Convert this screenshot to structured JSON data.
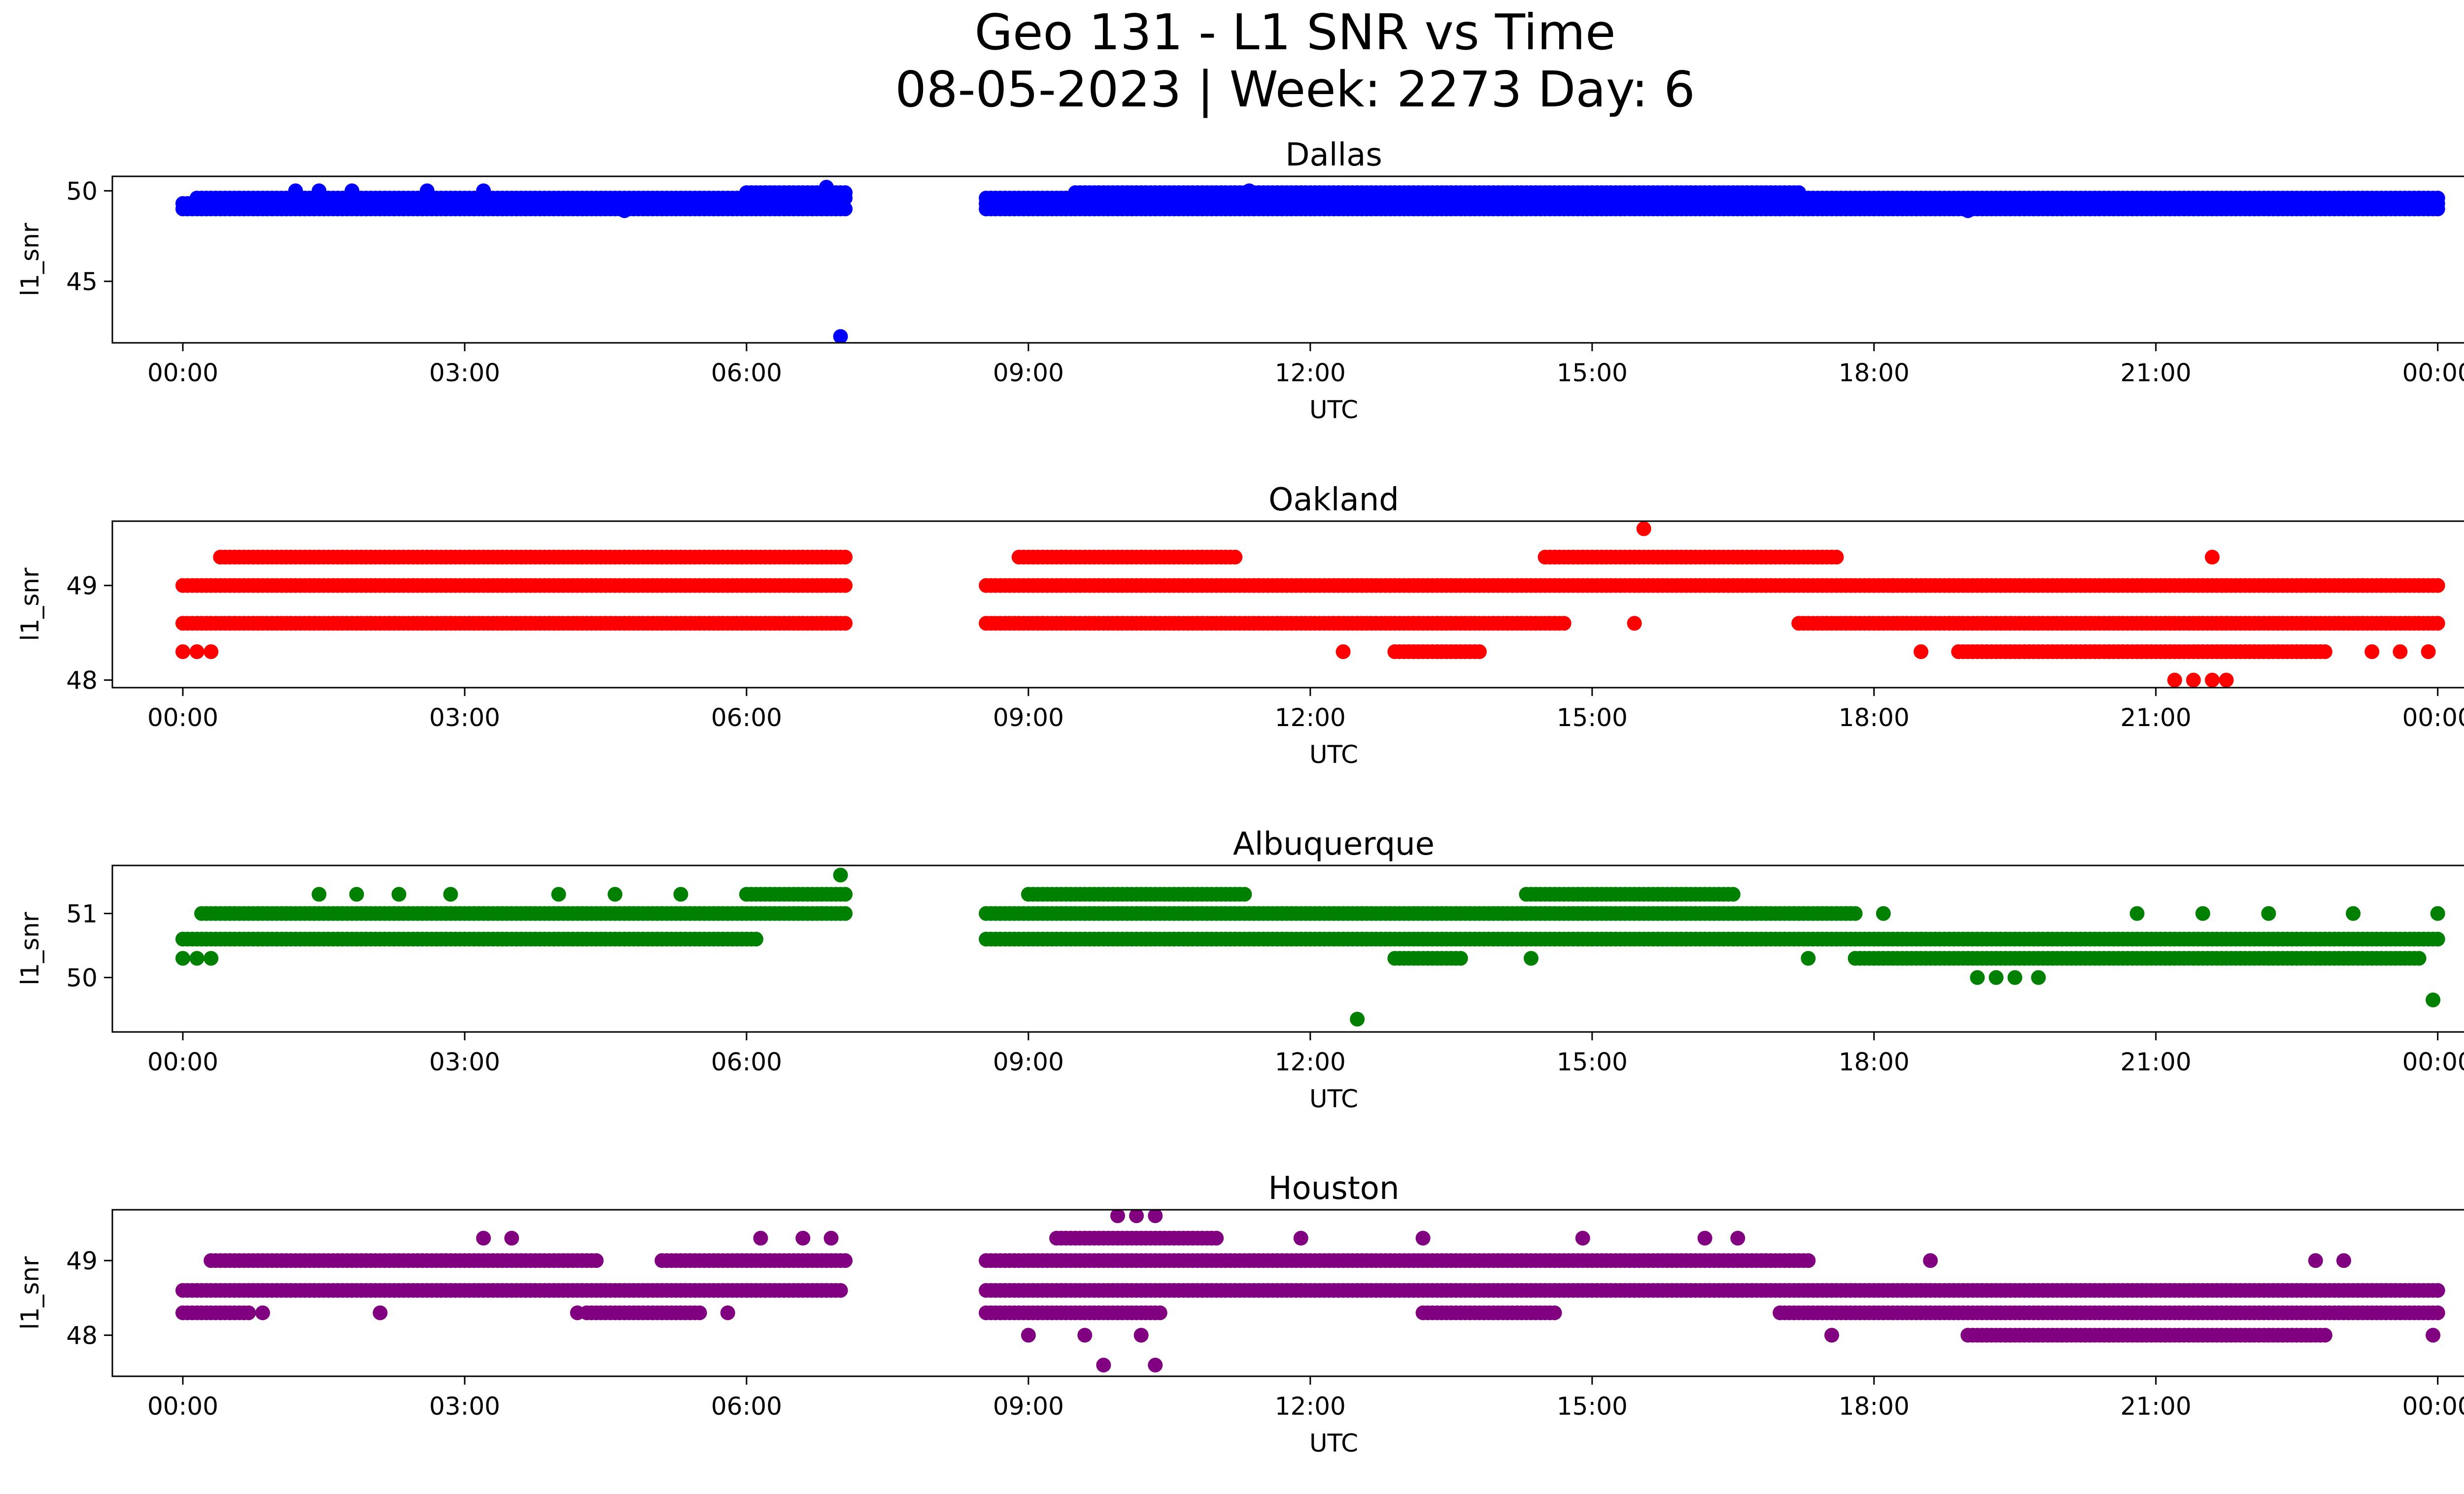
{
  "figure": {
    "title_line1": "Geo 131 - L1 SNR vs Time",
    "title_line2": "08-05-2023 | Week: 2273 Day: 6"
  },
  "chart_data": [
    {
      "type": "scatter",
      "title": "Dallas",
      "xlabel": "UTC",
      "ylabel": "l1_snr",
      "color": "#0000ff",
      "xlim_hours": [
        -0.75,
        25.25
      ],
      "ylim": [
        41.6,
        50.8
      ],
      "x_tick_labels": [
        "00:00",
        "03:00",
        "06:00",
        "09:00",
        "12:00",
        "15:00",
        "18:00",
        "21:00",
        "00:00"
      ],
      "y_ticks": [
        45,
        50
      ],
      "y_tick_labels": [
        "45",
        "50"
      ],
      "grid": false,
      "bands": [
        {
          "y": 49.0,
          "segments": [
            [
              0.0,
              7.05
            ],
            [
              8.55,
              17.0
            ],
            [
              17.0,
              24.0
            ]
          ]
        },
        {
          "y": 49.3,
          "segments": [
            [
              0.0,
              6.0
            ],
            [
              8.55,
              24.0
            ]
          ]
        },
        {
          "y": 49.6,
          "segments": [
            [
              0.15,
              7.05
            ],
            [
              8.55,
              24.0
            ]
          ]
        },
        {
          "y": 49.9,
          "segments": [
            [
              6.0,
              7.05
            ],
            [
              9.5,
              17.2
            ]
          ]
        }
      ],
      "points": [
        {
          "t": 7.0,
          "v": 41.95
        },
        {
          "t": 6.85,
          "v": 50.2
        },
        {
          "t": 1.2,
          "v": 50.0
        },
        {
          "t": 1.45,
          "v": 50.0
        },
        {
          "t": 1.8,
          "v": 50.0
        },
        {
          "t": 2.6,
          "v": 50.0
        },
        {
          "t": 3.2,
          "v": 50.0
        },
        {
          "t": 11.35,
          "v": 50.0
        },
        {
          "t": 4.7,
          "v": 48.9
        },
        {
          "t": 19.0,
          "v": 48.9
        },
        {
          "t": 23.8,
          "v": 49.6
        }
      ]
    },
    {
      "type": "scatter",
      "title": "Oakland",
      "xlabel": "UTC",
      "ylabel": "l1_snr",
      "color": "#ff0000",
      "xlim_hours": [
        -0.75,
        25.25
      ],
      "ylim": [
        47.92,
        49.68
      ],
      "x_tick_labels": [
        "00:00",
        "03:00",
        "06:00",
        "09:00",
        "12:00",
        "15:00",
        "18:00",
        "21:00",
        "00:00"
      ],
      "y_ticks": [
        48,
        49
      ],
      "y_tick_labels": [
        "48",
        "49"
      ],
      "grid": false,
      "bands": [
        {
          "y": 49.0,
          "segments": [
            [
              0.0,
              7.05
            ],
            [
              8.55,
              18.2
            ],
            [
              18.2,
              24.0
            ]
          ]
        },
        {
          "y": 48.6,
          "segments": [
            [
              0.0,
              7.05
            ],
            [
              8.55,
              14.7
            ],
            [
              17.2,
              24.0
            ]
          ]
        },
        {
          "y": 49.3,
          "segments": [
            [
              0.4,
              7.05
            ],
            [
              8.9,
              11.2
            ],
            [
              14.5,
              17.6
            ]
          ]
        },
        {
          "y": 48.3,
          "segments": [
            [
              18.9,
              22.8
            ],
            [
              12.9,
              13.8
            ]
          ]
        }
      ],
      "points": [
        {
          "t": 0.0,
          "v": 48.3
        },
        {
          "t": 0.15,
          "v": 48.3
        },
        {
          "t": 0.3,
          "v": 48.3
        },
        {
          "t": 12.35,
          "v": 48.3
        },
        {
          "t": 15.55,
          "v": 49.6
        },
        {
          "t": 15.45,
          "v": 48.6
        },
        {
          "t": 21.6,
          "v": 49.3
        },
        {
          "t": 21.2,
          "v": 48.0
        },
        {
          "t": 21.4,
          "v": 48.0
        },
        {
          "t": 21.6,
          "v": 48.0
        },
        {
          "t": 21.75,
          "v": 48.0
        },
        {
          "t": 18.5,
          "v": 48.3
        },
        {
          "t": 23.3,
          "v": 48.3
        },
        {
          "t": 23.6,
          "v": 48.3
        },
        {
          "t": 23.9,
          "v": 48.3
        }
      ]
    },
    {
      "type": "scatter",
      "title": "Albuquerque",
      "xlabel": "UTC",
      "ylabel": "l1_snr",
      "color": "#008000",
      "xlim_hours": [
        -0.75,
        25.25
      ],
      "ylim": [
        49.15,
        51.75
      ],
      "x_tick_labels": [
        "00:00",
        "03:00",
        "06:00",
        "09:00",
        "12:00",
        "15:00",
        "18:00",
        "21:00",
        "00:00"
      ],
      "y_ticks": [
        50,
        51
      ],
      "y_tick_labels": [
        "50",
        "51"
      ],
      "grid": false,
      "bands": [
        {
          "y": 51.0,
          "segments": [
            [
              0.2,
              7.05
            ],
            [
              8.55,
              17.8
            ]
          ]
        },
        {
          "y": 50.6,
          "segments": [
            [
              0.0,
              6.1
            ],
            [
              8.55,
              24.0
            ]
          ]
        },
        {
          "y": 51.3,
          "segments": [
            [
              6.0,
              7.05
            ],
            [
              9.0,
              11.3
            ],
            [
              14.3,
              16.5
            ]
          ]
        },
        {
          "y": 50.3,
          "segments": [
            [
              17.8,
              23.8
            ],
            [
              12.9,
              13.6
            ]
          ]
        }
      ],
      "points": [
        {
          "t": 0.0,
          "v": 50.3
        },
        {
          "t": 0.15,
          "v": 50.3
        },
        {
          "t": 0.3,
          "v": 50.3
        },
        {
          "t": 1.45,
          "v": 51.3
        },
        {
          "t": 1.85,
          "v": 51.3
        },
        {
          "t": 2.3,
          "v": 51.3
        },
        {
          "t": 2.85,
          "v": 51.3
        },
        {
          "t": 4.0,
          "v": 51.3
        },
        {
          "t": 4.6,
          "v": 51.3
        },
        {
          "t": 5.3,
          "v": 51.3
        },
        {
          "t": 7.0,
          "v": 51.6
        },
        {
          "t": 12.5,
          "v": 49.35
        },
        {
          "t": 23.95,
          "v": 49.65
        },
        {
          "t": 19.1,
          "v": 50.0
        },
        {
          "t": 19.3,
          "v": 50.0
        },
        {
          "t": 19.5,
          "v": 50.0
        },
        {
          "t": 19.75,
          "v": 50.0
        },
        {
          "t": 10.25,
          "v": 50.6
        },
        {
          "t": 18.1,
          "v": 51.0
        },
        {
          "t": 20.8,
          "v": 51.0
        },
        {
          "t": 21.5,
          "v": 51.0
        },
        {
          "t": 22.2,
          "v": 51.0
        },
        {
          "t": 23.1,
          "v": 51.0
        },
        {
          "t": 24.0,
          "v": 51.0
        },
        {
          "t": 14.35,
          "v": 50.3
        },
        {
          "t": 17.3,
          "v": 50.3
        }
      ]
    },
    {
      "type": "scatter",
      "title": "Houston",
      "xlabel": "UTC",
      "ylabel": "l1_snr",
      "color": "#800080",
      "xlim_hours": [
        -0.75,
        25.25
      ],
      "ylim": [
        47.45,
        49.68
      ],
      "x_tick_labels": [
        "00:00",
        "03:00",
        "06:00",
        "09:00",
        "12:00",
        "15:00",
        "18:00",
        "21:00",
        "00:00"
      ],
      "y_ticks": [
        48,
        49
      ],
      "y_tick_labels": [
        "48",
        "49"
      ],
      "grid": false,
      "bands": [
        {
          "y": 48.6,
          "segments": [
            [
              0.0,
              7.0
            ],
            [
              8.55,
              24.0
            ]
          ]
        },
        {
          "y": 49.0,
          "segments": [
            [
              0.3,
              4.4
            ],
            [
              5.1,
              7.05
            ],
            [
              8.55,
              17.3
            ]
          ]
        },
        {
          "y": 48.3,
          "segments": [
            [
              0.0,
              0.7
            ],
            [
              4.3,
              5.5
            ],
            [
              8.55,
              10.4
            ],
            [
              13.2,
              14.6
            ],
            [
              17.0,
              24.0
            ]
          ]
        },
        {
          "y": 49.3,
          "segments": [
            [
              9.3,
              11.0
            ]
          ]
        },
        {
          "y": 48.0,
          "segments": [
            [
              19.0,
              22.8
            ]
          ]
        }
      ],
      "points": [
        {
          "t": 0.85,
          "v": 48.3
        },
        {
          "t": 2.1,
          "v": 48.3
        },
        {
          "t": 4.2,
          "v": 48.3
        },
        {
          "t": 5.8,
          "v": 48.3
        },
        {
          "t": 3.2,
          "v": 49.3
        },
        {
          "t": 3.5,
          "v": 49.3
        },
        {
          "t": 6.15,
          "v": 49.3
        },
        {
          "t": 6.6,
          "v": 49.3
        },
        {
          "t": 6.9,
          "v": 49.3
        },
        {
          "t": 9.95,
          "v": 49.6
        },
        {
          "t": 10.15,
          "v": 49.6
        },
        {
          "t": 10.35,
          "v": 49.6
        },
        {
          "t": 9.8,
          "v": 47.6
        },
        {
          "t": 10.35,
          "v": 47.6
        },
        {
          "t": 9.0,
          "v": 48.0
        },
        {
          "t": 9.6,
          "v": 48.0
        },
        {
          "t": 10.2,
          "v": 48.0
        },
        {
          "t": 11.9,
          "v": 49.3
        },
        {
          "t": 13.2,
          "v": 49.3
        },
        {
          "t": 14.9,
          "v": 49.3
        },
        {
          "t": 16.2,
          "v": 49.3
        },
        {
          "t": 16.55,
          "v": 49.3
        },
        {
          "t": 17.55,
          "v": 48.0
        },
        {
          "t": 18.6,
          "v": 49.0
        },
        {
          "t": 22.7,
          "v": 49.0
        },
        {
          "t": 23.0,
          "v": 49.0
        },
        {
          "t": 23.95,
          "v": 48.0
        }
      ]
    }
  ]
}
